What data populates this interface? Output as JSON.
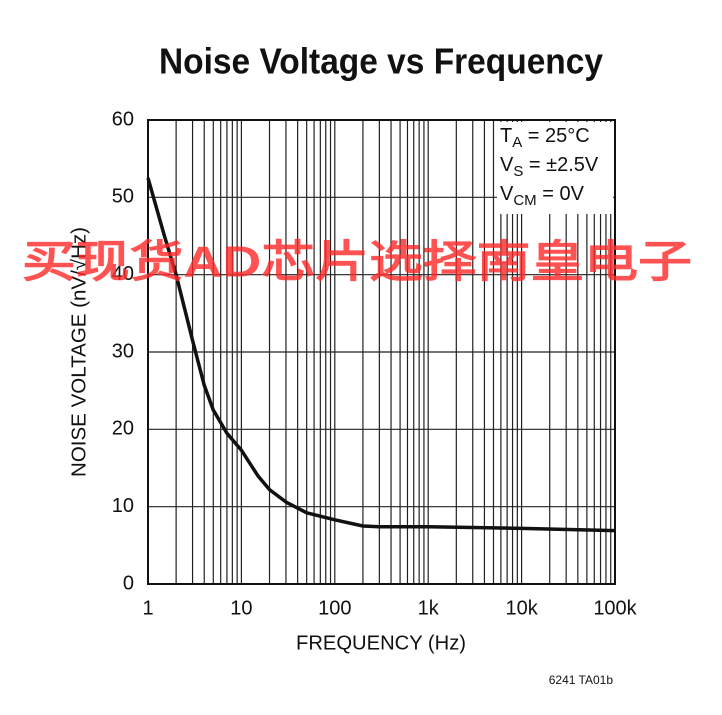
{
  "chart_data": {
    "type": "line",
    "title": "Noise Voltage vs Frequency",
    "x_label": "FREQUENCY (Hz)",
    "y_label": "NOISE VOLTAGE (nV/√Hz)",
    "x": [
      1,
      1.5,
      2,
      3,
      4,
      5,
      7,
      10,
      15,
      20,
      30,
      50,
      100,
      200,
      300,
      1000,
      10000,
      100000
    ],
    "values": [
      52.5,
      45,
      40,
      31.5,
      25.7,
      22.5,
      19.5,
      17.3,
      14,
      12.2,
      10.6,
      9.2,
      8.3,
      7.5,
      7.4,
      7.4,
      7.2,
      6.9
    ],
    "color": "#111111",
    "xscale": "log",
    "xlim": [
      1,
      100000
    ],
    "xticks": [
      1,
      10,
      100,
      {
        "value": 1000,
        "label": "1k"
      },
      {
        "value": 10000,
        "label": "10k"
      },
      {
        "value": 100000,
        "label": "100k"
      }
    ],
    "ylim": [
      0,
      60
    ],
    "yticks": [
      0,
      10,
      20,
      30,
      40,
      50,
      60
    ],
    "grid": true,
    "minor_grid": true,
    "conditions": [
      {
        "main": "T",
        "sub": "A",
        "rest": " = 25°C"
      },
      {
        "main": "V",
        "sub": "S",
        "rest": " = ±2.5V"
      },
      {
        "main": "V",
        "sub": "CM",
        "rest": " = 0V"
      }
    ],
    "footnote": "6241 TA01b",
    "watermark": "买现货AD芯片选择南皇电子"
  }
}
